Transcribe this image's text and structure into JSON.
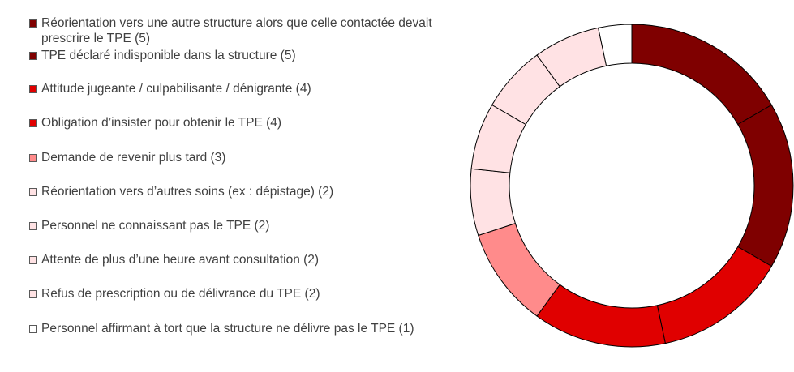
{
  "chart_data": {
    "type": "pie",
    "style": "donut",
    "title": "",
    "legend_placement": "left",
    "slices": [
      {
        "label": "Réorientation vers une autre structure alors que celle contactée devait prescrire le TPE (5)",
        "value": 5,
        "color": "#7f0000"
      },
      {
        "label": "TPE déclaré indisponible dans la structure (5)",
        "value": 5,
        "color": "#7f0000"
      },
      {
        "label": "Attitude jugeante / culpabilisante / dénigrante (4)",
        "value": 4,
        "color": "#e00000"
      },
      {
        "label": "Obligation d’insister pour obtenir le TPE (4)",
        "value": 4,
        "color": "#e00000"
      },
      {
        "label": "Demande de revenir plus tard (3)",
        "value": 3,
        "color": "#ff8b8b"
      },
      {
        "label": "Réorientation vers d’autres soins (ex : dépistage) (2)",
        "value": 2,
        "color": "#ffe2e4"
      },
      {
        "label": "Personnel ne connaissant pas le TPE (2)",
        "value": 2,
        "color": "#ffe2e4"
      },
      {
        "label": "Attente de plus d’une heure avant consultation (2)",
        "value": 2,
        "color": "#ffe2e4"
      },
      {
        "label": "Refus de prescription ou de délivrance du TPE (2)",
        "value": 2,
        "color": "#ffe2e4"
      },
      {
        "label": "Personnel affirmant à tort que la structure ne délivre pas le TPE (1)",
        "value": 1,
        "color": "#ffffff"
      }
    ]
  }
}
